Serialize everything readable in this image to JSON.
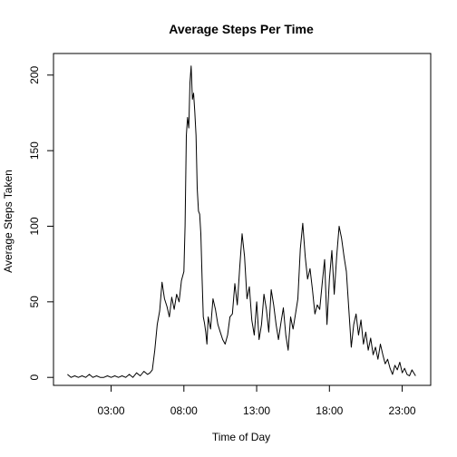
{
  "chart_data": {
    "type": "line",
    "title": "Average Steps Per Time",
    "xlabel": "Time of Day",
    "ylabel": "Average Steps Taken",
    "xlim": [
      "00:00",
      "24:00"
    ],
    "ylim": [
      0,
      206
    ],
    "x_ticks": [
      "03:00",
      "08:00",
      "13:00",
      "18:00",
      "23:00"
    ],
    "y_ticks": [
      0,
      50,
      100,
      150,
      200
    ],
    "grid": false,
    "legend": "none",
    "series": [
      {
        "color": "#000000",
        "x": [
          "00:00",
          "00:15",
          "00:30",
          "00:45",
          "01:00",
          "01:15",
          "01:30",
          "01:45",
          "02:00",
          "02:15",
          "02:30",
          "02:45",
          "03:00",
          "03:15",
          "03:30",
          "03:45",
          "04:00",
          "04:15",
          "04:30",
          "04:45",
          "05:00",
          "05:15",
          "05:30",
          "05:40",
          "05:50",
          "06:00",
          "06:10",
          "06:20",
          "06:30",
          "06:40",
          "06:50",
          "07:00",
          "07:10",
          "07:20",
          "07:30",
          "07:40",
          "07:50",
          "08:00",
          "08:05",
          "08:10",
          "08:15",
          "08:20",
          "08:25",
          "08:30",
          "08:35",
          "08:40",
          "08:45",
          "08:50",
          "08:55",
          "09:00",
          "09:05",
          "09:10",
          "09:15",
          "09:20",
          "09:25",
          "09:30",
          "09:35",
          "09:40",
          "09:50",
          "10:00",
          "10:10",
          "10:20",
          "10:30",
          "10:40",
          "10:50",
          "11:00",
          "11:10",
          "11:20",
          "11:30",
          "11:40",
          "11:50",
          "12:00",
          "12:10",
          "12:20",
          "12:30",
          "12:40",
          "12:50",
          "13:00",
          "13:10",
          "13:20",
          "13:30",
          "13:40",
          "13:50",
          "14:00",
          "14:10",
          "14:20",
          "14:30",
          "14:40",
          "14:50",
          "15:00",
          "15:10",
          "15:20",
          "15:30",
          "15:40",
          "15:50",
          "16:00",
          "16:10",
          "16:20",
          "16:30",
          "16:40",
          "16:50",
          "17:00",
          "17:10",
          "17:20",
          "17:30",
          "17:40",
          "17:50",
          "18:00",
          "18:10",
          "18:20",
          "18:30",
          "18:40",
          "18:50",
          "19:00",
          "19:10",
          "19:20",
          "19:30",
          "19:40",
          "19:50",
          "20:00",
          "20:10",
          "20:20",
          "20:30",
          "20:40",
          "20:50",
          "21:00",
          "21:10",
          "21:20",
          "21:30",
          "21:40",
          "21:50",
          "22:00",
          "22:10",
          "22:20",
          "22:30",
          "22:40",
          "22:50",
          "23:00",
          "23:10",
          "23:20",
          "23:30",
          "23:40",
          "23:55"
        ],
        "values": [
          2,
          0,
          1,
          0,
          1,
          0,
          2,
          0,
          1,
          0,
          0,
          1,
          0,
          1,
          0,
          1,
          0,
          2,
          0,
          3,
          1,
          4,
          2,
          3,
          5,
          18,
          35,
          44,
          63,
          52,
          47,
          40,
          53,
          45,
          55,
          50,
          64,
          70,
          100,
          160,
          172,
          165,
          195,
          206,
          184,
          188,
          176,
          160,
          125,
          110,
          108,
          95,
          65,
          40,
          36,
          30,
          22,
          40,
          32,
          52,
          45,
          35,
          30,
          25,
          22,
          28,
          40,
          42,
          62,
          48,
          72,
          95,
          80,
          52,
          60,
          38,
          28,
          50,
          25,
          35,
          55,
          45,
          30,
          58,
          48,
          35,
          25,
          36,
          46,
          28,
          18,
          40,
          32,
          42,
          52,
          85,
          102,
          80,
          65,
          72,
          58,
          42,
          48,
          45,
          62,
          78,
          35,
          65,
          84,
          55,
          80,
          100,
          92,
          80,
          70,
          45,
          20,
          35,
          42,
          28,
          38,
          22,
          30,
          18,
          26,
          15,
          20,
          12,
          22,
          15,
          9,
          12,
          6,
          2,
          8,
          5,
          10,
          3,
          6,
          2,
          1,
          5,
          1
        ]
      }
    ]
  }
}
